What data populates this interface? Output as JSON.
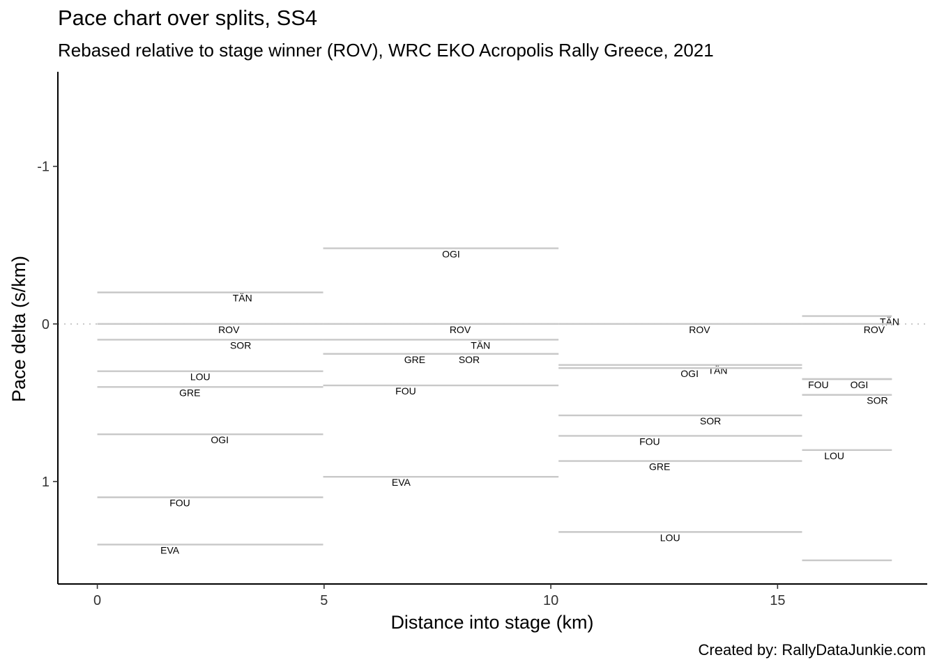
{
  "chart_data": {
    "type": "line",
    "title": "Pace chart over splits, SS4",
    "subtitle": "Rebased relative to stage winner (ROV), WRC EKO Acropolis Rally Greece, 2021",
    "caption": "Created by: RallyDataJunkie.com",
    "xlabel": "Distance into stage (km)",
    "ylabel": "Pace delta (s/km)",
    "xlim": [
      -0.87,
      18.3
    ],
    "ylim": [
      1.65,
      -1.6
    ],
    "y_reversed": true,
    "xticks": [
      0,
      5,
      10,
      15
    ],
    "xtick_labels": [
      "0",
      "5",
      "10",
      "15"
    ],
    "yticks": [
      -1,
      0,
      1
    ],
    "ytick_labels": [
      "-1",
      "0",
      "1"
    ],
    "reference_line": 0,
    "grid": false,
    "splits": [
      {
        "start": 0,
        "end": 4.98,
        "segments": [
          {
            "driver": "TÄN",
            "pace": -0.2,
            "label_x": 3.2
          },
          {
            "driver": "ROV",
            "pace": 0.0,
            "label_x": 2.9
          },
          {
            "driver": "SOR",
            "pace": 0.1,
            "label_x": 3.16
          },
          {
            "driver": "LOU",
            "pace": 0.3,
            "label_x": 2.27
          },
          {
            "driver": "GRE",
            "pace": 0.4,
            "label_x": 2.04
          },
          {
            "driver": "OGI",
            "pace": 0.7,
            "label_x": 2.7
          },
          {
            "driver": "FOU",
            "pace": 1.1,
            "label_x": 1.82
          },
          {
            "driver": "EVA",
            "pace": 1.4,
            "label_x": 1.6
          }
        ]
      },
      {
        "start": 4.98,
        "end": 10.17,
        "segments": [
          {
            "driver": "OGI",
            "pace": -0.48,
            "label_x": 7.8
          },
          {
            "driver": "ROV",
            "pace": 0.0,
            "label_x": 8.0
          },
          {
            "driver": "TÄN",
            "pace": 0.1,
            "label_x": 8.45
          },
          {
            "driver": "GRE",
            "pace": 0.19,
            "label_x": 7.0
          },
          {
            "driver": "SOR",
            "pace": 0.19,
            "label_x": 8.2
          },
          {
            "driver": "FOU",
            "pace": 0.39,
            "label_x": 6.8
          },
          {
            "driver": "EVA",
            "pace": 0.97,
            "label_x": 6.7
          }
        ]
      },
      {
        "start": 10.17,
        "end": 15.54,
        "segments": [
          {
            "driver": "ROV",
            "pace": 0.0,
            "label_x": 13.28
          },
          {
            "driver": "TÄN",
            "pace": 0.26,
            "label_x": 13.68
          },
          {
            "driver": "OGI",
            "pace": 0.28,
            "label_x": 13.06
          },
          {
            "driver": "SOR",
            "pace": 0.58,
            "label_x": 13.52
          },
          {
            "driver": "FOU",
            "pace": 0.71,
            "label_x": 12.18
          },
          {
            "driver": "GRE",
            "pace": 0.87,
            "label_x": 12.4
          },
          {
            "driver": "LOU",
            "pace": 1.32,
            "label_x": 12.63
          }
        ]
      },
      {
        "start": 15.54,
        "end": 17.52,
        "segments": [
          {
            "driver": "TÄN",
            "pace": -0.05,
            "label_x": 17.47
          },
          {
            "driver": "ROV",
            "pace": 0.0,
            "label_x": 17.13
          },
          {
            "driver": "FOU",
            "pace": 0.35,
            "label_x": 15.9
          },
          {
            "driver": "OGI",
            "pace": 0.35,
            "label_x": 16.8
          },
          {
            "driver": "SOR",
            "pace": 0.45,
            "label_x": 17.2
          },
          {
            "driver": "LOU",
            "pace": 0.8,
            "label_x": 16.25
          },
          {
            "driver": "",
            "pace": 1.5,
            "label_x": 16.5
          }
        ]
      }
    ]
  },
  "colors": {
    "segment_line": "#c8c8c8",
    "reference_line": "#c8c8c8",
    "axis": "#000000"
  }
}
